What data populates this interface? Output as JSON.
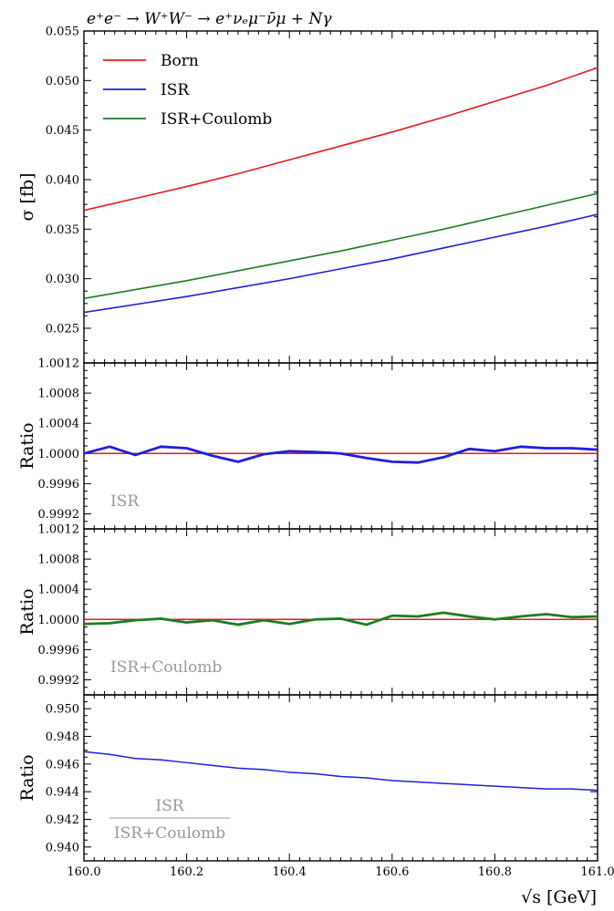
{
  "chart_data": [
    {
      "type": "line",
      "title": "e⁺e⁻ → W⁺W⁻ → e⁺νₑμ⁻ν̄μ + Nγ",
      "ylabel": "σ [fb]",
      "ylim": [
        0.0215,
        0.055
      ],
      "yticks": [
        "0.025",
        "0.030",
        "0.035",
        "0.040",
        "0.045",
        "0.050",
        "0.055"
      ],
      "legend_position": "top-left",
      "x": [
        160.0,
        160.1,
        160.2,
        160.3,
        160.4,
        160.5,
        160.6,
        160.7,
        160.8,
        160.9,
        161.0
      ],
      "series": [
        {
          "name": "Born",
          "color": "#e41a1c",
          "values": [
            0.0369,
            0.0381,
            0.0393,
            0.0406,
            0.042,
            0.0434,
            0.0448,
            0.0463,
            0.0479,
            0.0495,
            0.0513
          ]
        },
        {
          "name": "ISR",
          "color": "#1f1fdd",
          "values": [
            0.0266,
            0.0274,
            0.0282,
            0.0291,
            0.03,
            0.031,
            0.032,
            0.0331,
            0.0342,
            0.0353,
            0.0365
          ]
        },
        {
          "name": "ISR+Coulomb",
          "color": "#1e7d1e",
          "values": [
            0.028,
            0.0289,
            0.0298,
            0.0308,
            0.0318,
            0.0328,
            0.0339,
            0.035,
            0.0362,
            0.0374,
            0.0386
          ]
        }
      ]
    },
    {
      "type": "line",
      "ylabel": "Ratio",
      "ylim": [
        0.999,
        1.0012
      ],
      "yticks": [
        "0.9992",
        "0.9996",
        "1.0000",
        "1.0004",
        "1.0008",
        "1.0012"
      ],
      "annotation": "ISR",
      "x": [
        160.0,
        160.05,
        160.1,
        160.15,
        160.2,
        160.25,
        160.3,
        160.35,
        160.4,
        160.45,
        160.5,
        160.55,
        160.6,
        160.65,
        160.7,
        160.75,
        160.8,
        160.85,
        160.9,
        160.95,
        161.0
      ],
      "series": [
        {
          "color": "#e41a1c",
          "values": [
            1.0,
            1.0,
            1.0,
            1.0,
            1.0,
            1.0,
            1.0,
            1.0,
            1.0,
            1.0,
            1.0,
            1.0,
            1.0,
            1.0,
            1.0,
            1.0,
            1.0,
            1.0,
            1.0,
            1.0,
            1.0
          ]
        },
        {
          "color": "#1f1fdd",
          "values": [
            1.0,
            1.00009,
            0.99998,
            1.00009,
            1.00007,
            0.99997,
            0.99989,
            0.99999,
            1.00003,
            1.00002,
            1.0,
            0.99994,
            0.99989,
            0.99988,
            0.99995,
            1.00006,
            1.00003,
            1.00009,
            1.00007,
            1.00007,
            1.00005
          ]
        }
      ]
    },
    {
      "type": "line",
      "ylabel": "Ratio",
      "ylim": [
        0.999,
        1.0012
      ],
      "yticks": [
        "0.9992",
        "0.9996",
        "1.0000",
        "1.0004",
        "1.0008",
        "1.0012"
      ],
      "annotation": "ISR+Coulomb",
      "x": [
        160.0,
        160.05,
        160.1,
        160.15,
        160.2,
        160.25,
        160.3,
        160.35,
        160.4,
        160.45,
        160.5,
        160.55,
        160.6,
        160.65,
        160.7,
        160.75,
        160.8,
        160.85,
        160.9,
        160.95,
        161.0
      ],
      "series": [
        {
          "color": "#e41a1c",
          "values": [
            1.0,
            1.0,
            1.0,
            1.0,
            1.0,
            1.0,
            1.0,
            1.0,
            1.0,
            1.0,
            1.0,
            1.0,
            1.0,
            1.0,
            1.0,
            1.0,
            1.0,
            1.0,
            1.0,
            1.0,
            1.0
          ]
        },
        {
          "color": "#1e7d1e",
          "values": [
            0.99994,
            0.99995,
            0.99999,
            1.00001,
            0.99996,
            0.99999,
            0.99993,
            0.99999,
            0.99994,
            1.0,
            1.00001,
            0.99993,
            1.00005,
            1.00004,
            1.00009,
            1.00004,
            1.0,
            1.00004,
            1.00007,
            1.00003,
            1.00004
          ]
        }
      ]
    },
    {
      "type": "line",
      "ylabel": "Ratio",
      "xlabel": "√s [GeV]",
      "ylim": [
        0.939,
        0.951
      ],
      "yticks": [
        "0.940",
        "0.942",
        "0.944",
        "0.946",
        "0.948",
        "0.950"
      ],
      "xticks": [
        "160.0",
        "160.2",
        "160.4",
        "160.6",
        "160.8",
        "161.0"
      ],
      "annotation_numerator": "ISR",
      "annotation_denominator": "ISR+Coulomb",
      "x": [
        160.0,
        160.05,
        160.1,
        160.15,
        160.2,
        160.25,
        160.3,
        160.35,
        160.4,
        160.45,
        160.5,
        160.55,
        160.6,
        160.65,
        160.7,
        160.75,
        160.8,
        160.85,
        160.9,
        160.95,
        161.0
      ],
      "series": [
        {
          "color": "#1f1fdd",
          "values": [
            0.9469,
            0.9467,
            0.9464,
            0.9463,
            0.9461,
            0.9459,
            0.9457,
            0.9456,
            0.9454,
            0.9453,
            0.9451,
            0.945,
            0.9448,
            0.9447,
            0.9446,
            0.9445,
            0.9444,
            0.9443,
            0.9442,
            0.9442,
            0.9441
          ]
        }
      ]
    }
  ]
}
